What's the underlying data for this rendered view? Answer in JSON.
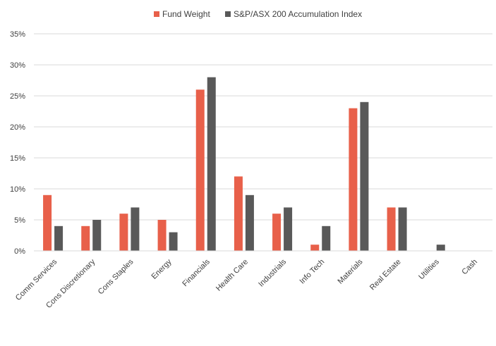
{
  "chart_data": {
    "type": "bar",
    "categories": [
      "Comm Services",
      "Cons Discretionary",
      "Cons Staples",
      "Energy",
      "Financials",
      "Health Care",
      "Industrials",
      "Info Tech",
      "Materials",
      "Real Estate",
      "Utilities",
      "Cash"
    ],
    "series": [
      {
        "name": "Fund Weight",
        "color": "#e8604a",
        "values": [
          9,
          4,
          6,
          5,
          26,
          12,
          6,
          1,
          23,
          7,
          0,
          0
        ]
      },
      {
        "name": "S&P/ASX 200 Accumulation Index",
        "color": "#595959",
        "values": [
          4,
          5,
          7,
          3,
          28,
          9,
          7,
          4,
          24,
          7,
          1,
          0
        ]
      }
    ],
    "yticks": [
      "0%",
      "5%",
      "10%",
      "15%",
      "20%",
      "25%",
      "30%",
      "35%"
    ],
    "ylim": [
      0,
      35
    ],
    "grid": true,
    "legend_position": "top-center"
  }
}
